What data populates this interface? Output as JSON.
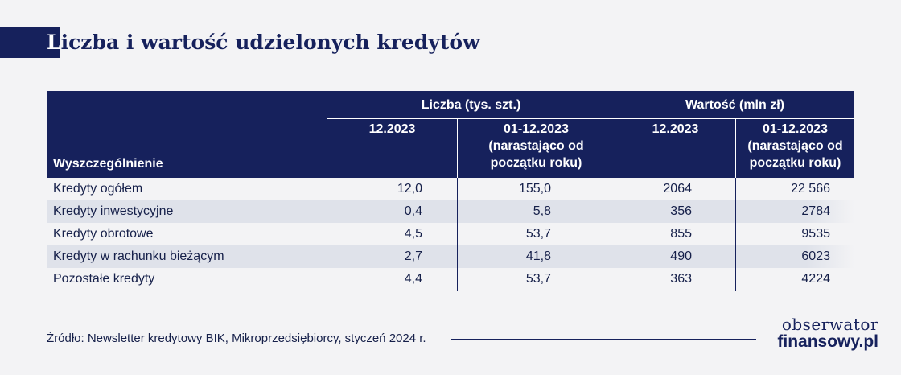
{
  "title": {
    "first_letter": "L",
    "rest": "iczba i wartość udzielonych kredytów"
  },
  "header": {
    "row_header": "Wyszczególnienie",
    "group_count": "Liczba (tys. szt.)",
    "group_value": "Wartość (mln zł)",
    "col_month": "12.2023",
    "col_ytd_line1": "01-12.2023",
    "col_ytd_line2": "(narastająco od",
    "col_ytd_line3": "początku roku)"
  },
  "rows": [
    {
      "label": "Kredyty ogółem",
      "count_month": "12,0",
      "count_ytd": "155,0",
      "value_month": "2064",
      "value_ytd": "22 566"
    },
    {
      "label": "Kredyty inwestycyjne",
      "count_month": "0,4",
      "count_ytd": "5,8",
      "value_month": "356",
      "value_ytd": "2784"
    },
    {
      "label": "Kredyty obrotowe",
      "count_month": "4,5",
      "count_ytd": "53,7",
      "value_month": "855",
      "value_ytd": "9535"
    },
    {
      "label": "Kredyty w rachunku bieżącym",
      "count_month": "2,7",
      "count_ytd": "41,8",
      "value_month": "490",
      "value_ytd": "6023"
    },
    {
      "label": "Pozostałe kredyty",
      "count_month": "4,4",
      "count_ytd": "53,7",
      "value_month": "363",
      "value_ytd": "4224"
    }
  ],
  "source": "Źródło: Newsletter kredytowy BIK, Mikroprzedsiębiorcy, styczeń 2024 r.",
  "logo": {
    "line1": "obserwator",
    "line2": "finansowy.pl"
  },
  "colors": {
    "navy": "#16215c",
    "row_alt": "#dfe2ea",
    "background": "#f3f3f5"
  }
}
